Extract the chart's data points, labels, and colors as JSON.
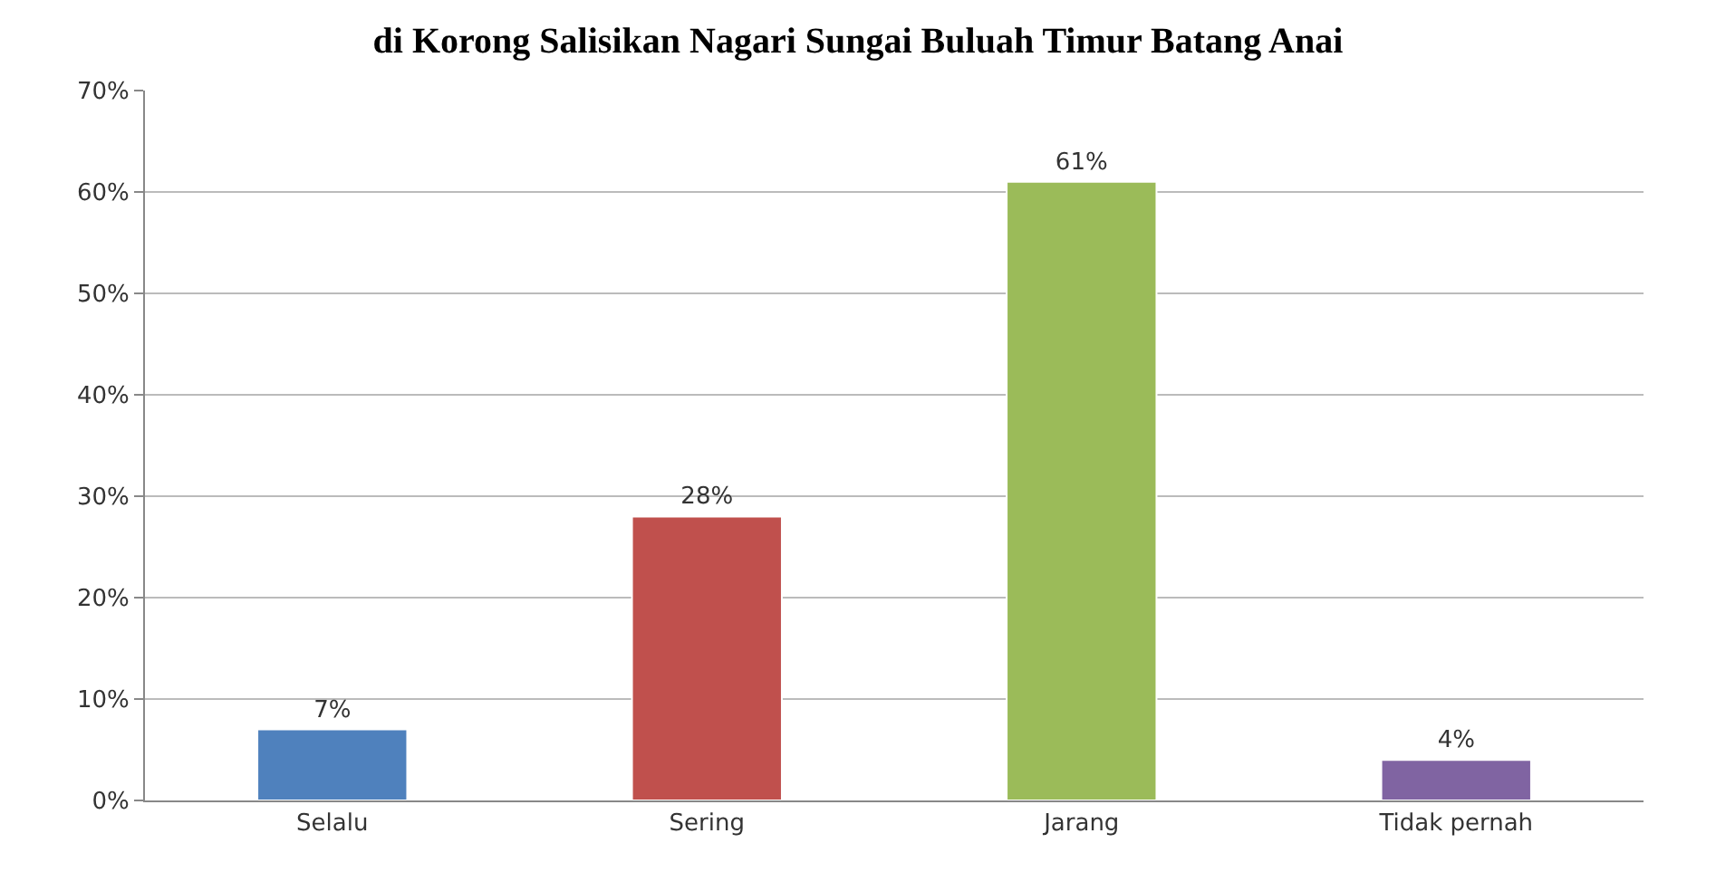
{
  "chart_data": {
    "type": "bar",
    "title": "di Korong Salisikan Nagari Sungai Buluah Timur Batang Anai",
    "categories": [
      "Selalu",
      "Sering",
      "Jarang",
      "Tidak pernah"
    ],
    "values": [
      7,
      28,
      61,
      4
    ],
    "colors": [
      "#4f81bd",
      "#c0504d",
      "#9bbb59",
      "#8064a2"
    ],
    "value_labels": [
      "7%",
      "28%",
      "61%",
      "4%"
    ],
    "ylim": [
      0,
      70
    ],
    "yticks": [
      {
        "value": 0,
        "label": "0%"
      },
      {
        "value": 10,
        "label": "10%"
      },
      {
        "value": 20,
        "label": "20%"
      },
      {
        "value": 30,
        "label": "30%"
      },
      {
        "value": 40,
        "label": "40%"
      },
      {
        "value": 50,
        "label": "50%"
      },
      {
        "value": 60,
        "label": "60%"
      },
      {
        "value": 70,
        "label": "70%"
      }
    ],
    "grid": "y"
  }
}
